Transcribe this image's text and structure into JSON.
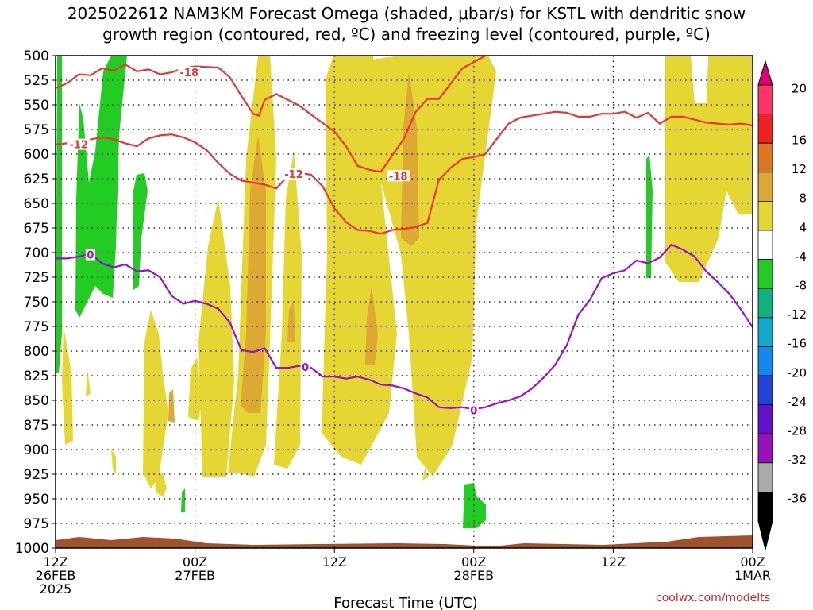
{
  "title": {
    "line1": "2025022612 NAM3KM Forecast Omega (shaded, μbar/s) for KSTL with dendritic snow",
    "line2": "growth region (contoured, red, ºC) and freezing level (contoured, purple, ºC)"
  },
  "credit": "coolwx.com/modelts",
  "chart_data": {
    "type": "area",
    "xlabel": "Forecast Time (UTC)",
    "x_ticks": [
      {
        "hour": 0,
        "lines": [
          "12Z",
          "26FEB",
          "2025"
        ]
      },
      {
        "hour": 12,
        "lines": [
          "00Z",
          "27FEB"
        ]
      },
      {
        "hour": 24,
        "lines": [
          "12Z"
        ]
      },
      {
        "hour": 36,
        "lines": [
          "00Z",
          "28FEB"
        ]
      },
      {
        "hour": 48,
        "lines": [
          "12Z"
        ]
      },
      {
        "hour": 60,
        "lines": [
          "00Z",
          "1MAR"
        ]
      }
    ],
    "xlim": [
      0,
      60
    ],
    "ylabel_ticks": [
      500,
      525,
      550,
      575,
      600,
      625,
      650,
      675,
      700,
      725,
      750,
      775,
      800,
      825,
      850,
      875,
      900,
      925,
      950,
      975,
      1000
    ],
    "ylim": [
      1000,
      500
    ],
    "grid": true,
    "colorbar": {
      "labels": [
        "20",
        "16",
        "12",
        "8",
        "4",
        "-4",
        "-8",
        "-12",
        "-16",
        "-20",
        "-24",
        "-28",
        "-32",
        "-36"
      ],
      "colors": [
        "#ff3366",
        "#ee2222",
        "#dd7722",
        "#dda833",
        "#e6d633",
        "#ffffff",
        "#22cc22",
        "#11b080",
        "#11aacc",
        "#1188ee",
        "#2244dd",
        "#6611cc",
        "#9911bb",
        "#aaaaaa",
        "#000000"
      ],
      "top_color": "#dd0077",
      "bottom_color": "#000000"
    },
    "contour_colors": {
      "dgz": "#ee3333",
      "freezing": "#9911cc",
      "surface": "#a0522d"
    },
    "series": [
      {
        "name": "-18",
        "color": "#ee3333",
        "points": [
          [
            0,
            533
          ],
          [
            1,
            528
          ],
          [
            2,
            519
          ],
          [
            3,
            520
          ],
          [
            4,
            513
          ],
          [
            5,
            515
          ],
          [
            6,
            509
          ],
          [
            7,
            516
          ],
          [
            8,
            514
          ],
          [
            9,
            519
          ],
          [
            10,
            517
          ],
          [
            11,
            513
          ],
          [
            12,
            511
          ],
          [
            14,
            512
          ],
          [
            15,
            522
          ],
          [
            16,
            541
          ],
          [
            17,
            559
          ],
          [
            17.5,
            561
          ],
          [
            18,
            545
          ],
          [
            19,
            539
          ],
          [
            21,
            551
          ],
          [
            22,
            560
          ],
          [
            24,
            577
          ],
          [
            25,
            592
          ],
          [
            26,
            612
          ],
          [
            27,
            616
          ],
          [
            28,
            618
          ],
          [
            30,
            584
          ],
          [
            31,
            557
          ],
          [
            32,
            544
          ],
          [
            33,
            544
          ],
          [
            35,
            513
          ],
          [
            37,
            500
          ]
        ],
        "label_at": [
          [
            11.5,
            517
          ],
          [
            29.5,
            622
          ]
        ]
      },
      {
        "name": "-12",
        "color": "#ee3333",
        "points": [
          [
            0,
            590
          ],
          [
            1,
            589
          ],
          [
            2,
            589
          ],
          [
            3,
            585
          ],
          [
            4,
            583
          ],
          [
            5,
            585
          ],
          [
            6,
            589
          ],
          [
            7,
            592
          ],
          [
            8,
            584
          ],
          [
            9,
            581
          ],
          [
            10,
            580
          ],
          [
            11,
            583
          ],
          [
            12,
            588
          ],
          [
            13,
            596
          ],
          [
            14,
            609
          ],
          [
            15,
            620
          ],
          [
            16,
            627
          ],
          [
            17,
            629
          ],
          [
            18,
            631
          ],
          [
            19,
            635
          ],
          [
            20,
            622
          ],
          [
            21,
            619
          ],
          [
            22,
            621
          ],
          [
            23,
            633
          ],
          [
            24,
            655
          ],
          [
            25,
            669
          ],
          [
            26,
            677
          ],
          [
            27,
            678
          ],
          [
            28,
            681
          ],
          [
            29,
            677
          ],
          [
            30,
            676
          ],
          [
            31,
            674
          ],
          [
            32,
            670
          ],
          [
            33,
            626
          ],
          [
            34,
            614
          ],
          [
            35,
            605
          ],
          [
            36,
            603
          ],
          [
            37,
            600
          ],
          [
            38,
            584
          ],
          [
            39,
            569
          ],
          [
            40,
            563
          ],
          [
            41,
            561
          ],
          [
            42,
            559
          ],
          [
            43,
            557
          ],
          [
            44,
            558
          ],
          [
            45,
            562
          ],
          [
            46,
            562
          ],
          [
            47,
            559
          ],
          [
            48,
            559
          ],
          [
            49,
            557
          ],
          [
            50,
            563
          ],
          [
            51,
            558
          ],
          [
            52,
            569
          ],
          [
            53,
            562
          ],
          [
            54,
            562
          ],
          [
            55,
            565
          ],
          [
            56,
            568
          ],
          [
            57,
            569
          ],
          [
            58,
            570
          ],
          [
            59,
            569
          ],
          [
            60,
            571
          ]
        ],
        "label_at": [
          [
            2,
            590
          ],
          [
            20.5,
            620
          ]
        ]
      },
      {
        "name": "0",
        "color": "#9911cc",
        "points": [
          [
            0,
            706
          ],
          [
            1,
            706
          ],
          [
            2,
            704
          ],
          [
            3,
            701
          ],
          [
            4,
            711
          ],
          [
            5,
            715
          ],
          [
            6,
            712
          ],
          [
            7,
            719
          ],
          [
            8,
            718
          ],
          [
            9,
            725
          ],
          [
            10,
            744
          ],
          [
            11,
            752
          ],
          [
            12,
            749
          ],
          [
            13,
            752
          ],
          [
            14,
            757
          ],
          [
            15,
            771
          ],
          [
            16,
            799
          ],
          [
            17,
            801
          ],
          [
            18,
            797
          ],
          [
            19,
            817
          ],
          [
            20,
            817
          ],
          [
            21,
            815
          ],
          [
            22,
            817
          ],
          [
            23,
            826
          ],
          [
            24,
            826
          ],
          [
            25,
            828
          ],
          [
            26,
            826
          ],
          [
            27,
            829
          ],
          [
            28,
            834
          ],
          [
            29,
            835
          ],
          [
            30,
            838
          ],
          [
            31,
            843
          ],
          [
            32,
            847
          ],
          [
            33,
            857
          ],
          [
            34,
            858
          ],
          [
            35,
            857
          ],
          [
            36,
            859
          ],
          [
            37,
            857
          ],
          [
            38,
            853
          ],
          [
            39,
            850
          ],
          [
            40,
            846
          ],
          [
            41,
            838
          ],
          [
            42,
            827
          ],
          [
            43,
            814
          ],
          [
            44,
            794
          ],
          [
            45,
            763
          ],
          [
            46,
            748
          ],
          [
            47,
            726
          ],
          [
            48,
            721
          ],
          [
            49,
            718
          ],
          [
            50,
            708
          ],
          [
            51,
            711
          ],
          [
            52,
            705
          ],
          [
            53,
            692
          ],
          [
            54,
            697
          ],
          [
            55,
            704
          ],
          [
            56,
            719
          ],
          [
            57,
            730
          ],
          [
            58,
            742
          ],
          [
            59,
            758
          ],
          [
            60,
            776
          ]
        ],
        "label_at": [
          [
            3,
            702
          ],
          [
            21.5,
            816
          ],
          [
            36,
            860
          ]
        ]
      }
    ],
    "shaded_regions": [
      {
        "class": "+4",
        "color": "#e6d633",
        "note": "upward-motion (positive omega) yellow areas"
      },
      {
        "class": "+8",
        "color": "#dda833"
      },
      {
        "class": "-4",
        "color": "#22cc22",
        "note": "negative omega green areas"
      },
      {
        "class": "surface",
        "color": "#a0522d"
      }
    ]
  }
}
